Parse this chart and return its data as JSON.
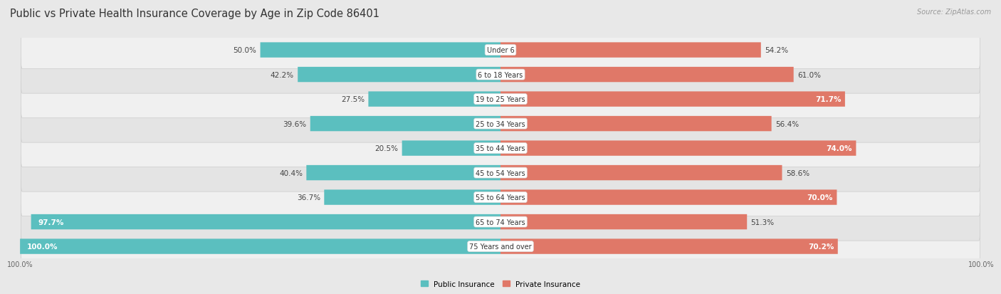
{
  "title": "Public vs Private Health Insurance Coverage by Age in Zip Code 86401",
  "source": "Source: ZipAtlas.com",
  "categories": [
    "Under 6",
    "6 to 18 Years",
    "19 to 25 Years",
    "25 to 34 Years",
    "35 to 44 Years",
    "45 to 54 Years",
    "55 to 64 Years",
    "65 to 74 Years",
    "75 Years and over"
  ],
  "public_values": [
    50.0,
    42.2,
    27.5,
    39.6,
    20.5,
    40.4,
    36.7,
    97.7,
    100.0
  ],
  "private_values": [
    54.2,
    61.0,
    71.7,
    56.4,
    74.0,
    58.6,
    70.0,
    51.3,
    70.2
  ],
  "public_color": "#5BBFBF",
  "private_color": "#E07868",
  "public_label": "Public Insurance",
  "private_label": "Private Insurance",
  "bg_color": "#e8e8e8",
  "row_bg_light": "#f5f5f5",
  "row_bg_dark": "#e0e0e0",
  "max_value": 100.0,
  "bar_height": 0.62,
  "title_fontsize": 10.5,
  "label_fontsize": 7.5,
  "tick_fontsize": 7,
  "source_fontsize": 7,
  "white_threshold_pub": 90.0,
  "white_threshold_priv": 68.0
}
